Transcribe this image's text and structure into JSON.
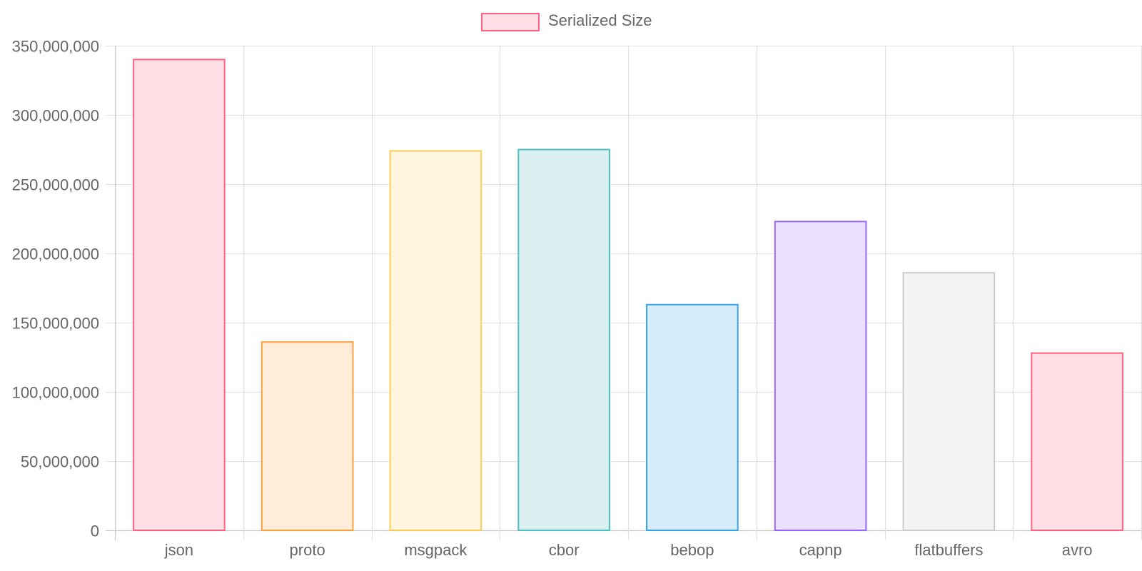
{
  "chart_data": {
    "type": "bar",
    "categories": [
      "json",
      "proto",
      "msgpack",
      "cbor",
      "bebop",
      "capnp",
      "flatbuffers",
      "avro"
    ],
    "series": [
      {
        "name": "Serialized Size",
        "values": [
          340000000,
          136000000,
          274000000,
          275000000,
          163000000,
          223000000,
          186000000,
          128000000
        ]
      }
    ],
    "ylim": [
      0,
      350000000
    ],
    "yticks": [
      0,
      50000000,
      100000000,
      150000000,
      200000000,
      250000000,
      300000000,
      350000000
    ],
    "ytick_labels": [
      "0",
      "50,000,000",
      "100,000,000",
      "150,000,000",
      "200,000,000",
      "250,000,000",
      "300,000,000",
      "350,000,000"
    ],
    "grid": true,
    "legend": {
      "position": "top",
      "label": "Serialized Size"
    },
    "colors": {
      "borders": [
        "#ff6384",
        "#ff9f40",
        "#ffcd56",
        "#4bc0c0",
        "#36a2eb",
        "#9966ff",
        "#c9cbcf",
        "#ff6384"
      ],
      "fills": [
        "#ffdfe5",
        "#ffecd9",
        "#fff4dd",
        "#dbf1f1",
        "#d6ecfb",
        "#ebe0ff",
        "#f3f4f4",
        "#ffdfe5"
      ],
      "legend_fill": "#ffdfe5",
      "legend_border": "#ff6384"
    }
  }
}
